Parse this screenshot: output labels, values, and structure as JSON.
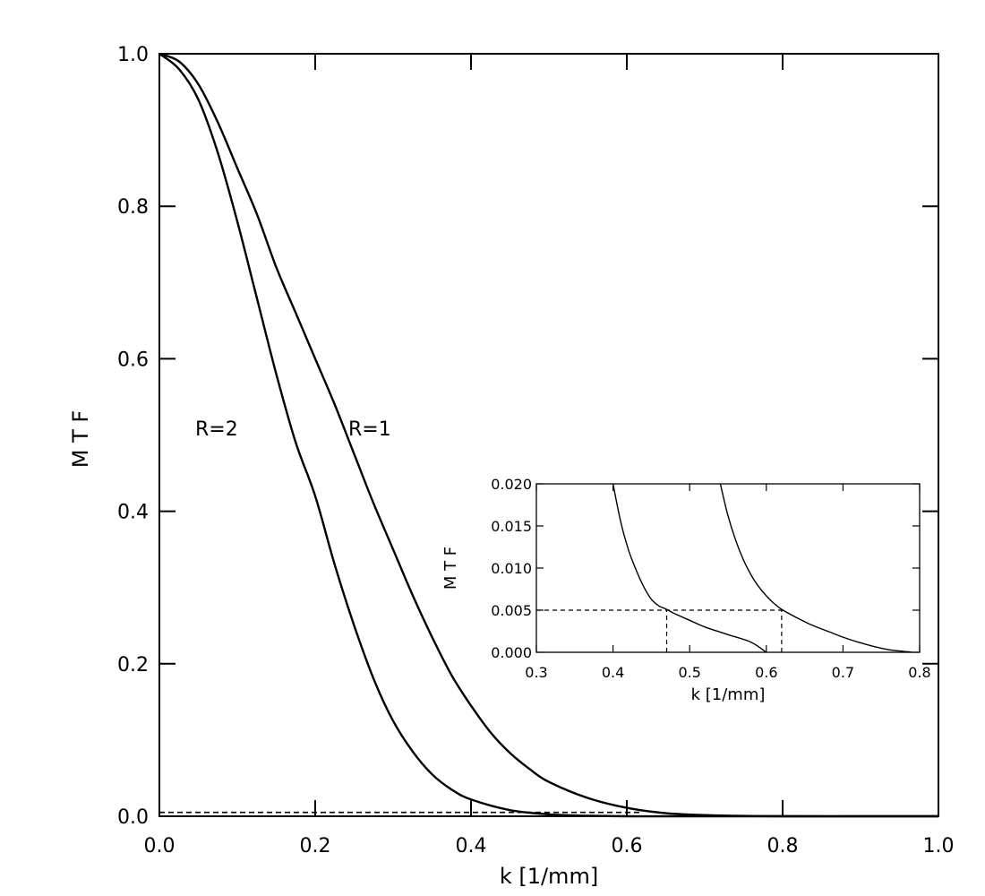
{
  "chart_data": [
    {
      "type": "line",
      "title": "",
      "xlabel": "k [1/mm]",
      "ylabel": "M T F",
      "xlim": [
        0.0,
        1.0
      ],
      "ylim": [
        0.0,
        1.0
      ],
      "xticks": [
        "0.0",
        "0.2",
        "0.4",
        "0.6",
        "0.8",
        "1.0"
      ],
      "yticks": [
        "0.0",
        "0.2",
        "0.4",
        "0.6",
        "0.8",
        "1.0"
      ],
      "grid": false,
      "legend": "none",
      "annotations": [
        "R=2",
        "R=1"
      ],
      "series": [
        {
          "name": "R=1",
          "x": [
            0.0,
            0.025,
            0.05,
            0.075,
            0.1,
            0.125,
            0.15,
            0.175,
            0.2,
            0.225,
            0.25,
            0.275,
            0.3,
            0.325,
            0.35,
            0.375,
            0.4,
            0.425,
            0.45,
            0.475,
            0.5,
            0.55,
            0.6,
            0.65,
            0.7,
            0.75,
            0.8,
            0.9,
            1.0
          ],
          "values": [
            1.0,
            0.99,
            0.96,
            0.91,
            0.85,
            0.79,
            0.72,
            0.66,
            0.6,
            0.54,
            0.475,
            0.41,
            0.35,
            0.29,
            0.235,
            0.185,
            0.145,
            0.11,
            0.083,
            0.062,
            0.045,
            0.024,
            0.011,
            0.004,
            0.0015,
            0.0005,
            0.0,
            0.0,
            0.0
          ]
        },
        {
          "name": "R=2",
          "x": [
            0.0,
            0.025,
            0.05,
            0.075,
            0.1,
            0.125,
            0.15,
            0.175,
            0.2,
            0.225,
            0.25,
            0.275,
            0.3,
            0.325,
            0.35,
            0.375,
            0.4,
            0.45,
            0.5,
            0.55,
            0.6,
            0.65,
            0.7,
            0.8,
            0.9,
            1.0
          ],
          "values": [
            1.0,
            0.98,
            0.94,
            0.87,
            0.78,
            0.68,
            0.58,
            0.49,
            0.42,
            0.33,
            0.25,
            0.18,
            0.125,
            0.085,
            0.055,
            0.035,
            0.022,
            0.008,
            0.0025,
            0.0006,
            0.0,
            0.0,
            0.0,
            0.0,
            0.0,
            0.0
          ]
        },
        {
          "name": "",
          "style": "dashed",
          "x": [
            0.0,
            0.62
          ],
          "values": [
            0.005,
            0.005
          ]
        }
      ]
    },
    {
      "type": "line",
      "title": "",
      "xlabel": "k [1/mm]",
      "ylabel": "M T F",
      "xlim": [
        0.3,
        0.8
      ],
      "ylim": [
        0.0,
        0.02
      ],
      "xticks": [
        "0.3",
        "0.4",
        "0.5",
        "0.6",
        "0.7",
        "0.8"
      ],
      "yticks": [
        "0.000",
        "0.005",
        "0.010",
        "0.015",
        "0.020"
      ],
      "grid": false,
      "legend": "none",
      "series": [
        {
          "name": "R=2",
          "x": [
            0.4,
            0.41,
            0.42,
            0.43,
            0.44,
            0.45,
            0.46,
            0.47,
            0.48,
            0.5,
            0.52,
            0.55,
            0.58,
            0.6
          ],
          "values": [
            0.02,
            0.0155,
            0.0122,
            0.0098,
            0.0078,
            0.0063,
            0.0055,
            0.0051,
            0.0046,
            0.0038,
            0.003,
            0.0021,
            0.0012,
            0.0
          ]
        },
        {
          "name": "R=1",
          "x": [
            0.54,
            0.55,
            0.56,
            0.57,
            0.58,
            0.59,
            0.6,
            0.61,
            0.62,
            0.64,
            0.66,
            0.68,
            0.7,
            0.72,
            0.74,
            0.76,
            0.78,
            0.79
          ],
          "values": [
            0.02,
            0.0162,
            0.0133,
            0.011,
            0.0092,
            0.0078,
            0.0067,
            0.0058,
            0.0051,
            0.0041,
            0.0032,
            0.0025,
            0.0018,
            0.0012,
            0.0007,
            0.0003,
            0.0001,
            0.0
          ]
        },
        {
          "name": "",
          "style": "dashed",
          "x": [
            0.3,
            0.62
          ],
          "values": [
            0.005,
            0.005
          ]
        },
        {
          "name": "",
          "style": "dashed",
          "x": [
            0.47,
            0.47
          ],
          "values": [
            0.0,
            0.005
          ]
        },
        {
          "name": "",
          "style": "dashed",
          "x": [
            0.62,
            0.62
          ],
          "values": [
            0.0,
            0.005
          ]
        }
      ]
    }
  ]
}
